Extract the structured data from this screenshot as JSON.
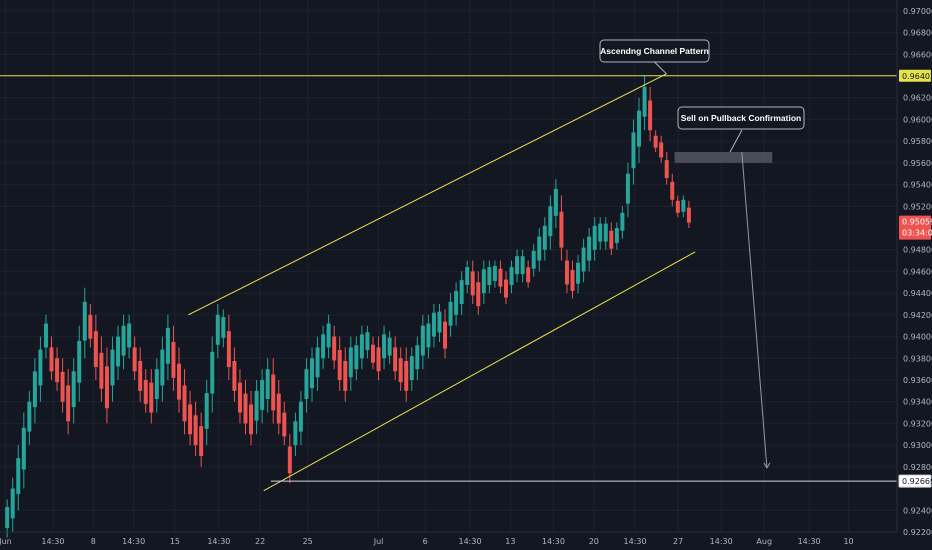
{
  "chart_data": {
    "type": "candlestick",
    "title": "",
    "xlabel": "",
    "ylabel": "",
    "ylim": [
      0.922,
      0.971
    ],
    "y_ticks": [
      0.97,
      0.968,
      0.966,
      0.962,
      0.96,
      0.958,
      0.956,
      0.954,
      0.952,
      0.948,
      0.946,
      0.944,
      0.942,
      0.94,
      0.938,
      0.936,
      0.934,
      0.932,
      0.93,
      0.928,
      0.924,
      0.922
    ],
    "y_tick_labels": [
      "0.97000",
      "0.96800",
      "0.96600",
      "0.96200",
      "0.96000",
      "0.95800",
      "0.95600",
      "0.95400",
      "0.95200",
      "0.94800",
      "0.94600",
      "0.94400",
      "0.94200",
      "0.94000",
      "0.93800",
      "0.93600",
      "0.93400",
      "0.93200",
      "0.93000",
      "0.92800",
      "0.92400",
      "0.92200"
    ],
    "x_range": [
      0,
      100
    ],
    "x_ticks": [
      {
        "x": 0.6,
        "label": "Jun"
      },
      {
        "x": 5.9,
        "label": "14:30"
      },
      {
        "x": 10.4,
        "label": "8"
      },
      {
        "x": 14.9,
        "label": "14:30"
      },
      {
        "x": 19.5,
        "label": "15"
      },
      {
        "x": 24.4,
        "label": "14:30"
      },
      {
        "x": 29.0,
        "label": "22"
      },
      {
        "x": 34.3,
        "label": "25"
      },
      {
        "x": 42.2,
        "label": "Jul"
      },
      {
        "x": 47.4,
        "label": "6"
      },
      {
        "x": 52.4,
        "label": "14:30"
      },
      {
        "x": 56.9,
        "label": "13"
      },
      {
        "x": 61.7,
        "label": "14:30"
      },
      {
        "x": 66.2,
        "label": "20"
      },
      {
        "x": 70.8,
        "label": "14:30"
      },
      {
        "x": 75.6,
        "label": "27"
      },
      {
        "x": 80.4,
        "label": "14:30"
      },
      {
        "x": 85.2,
        "label": "Aug"
      },
      {
        "x": 90.2,
        "label": "14:30"
      },
      {
        "x": 94.6,
        "label": "10"
      }
    ],
    "colors": {
      "up": "#26a69a",
      "down": "#ef5350",
      "channel": "#e8e34a",
      "support": "#d1d4dc",
      "arrow": "#9598a1",
      "zone": "#5d606b",
      "background": "#131722",
      "grid": "#1e222d",
      "axis_text": "#b2b5be"
    },
    "candle_hl": [
      [
        0.9215,
        0.925
      ],
      [
        0.922,
        0.927
      ],
      [
        0.924,
        0.93
      ],
      [
        0.926,
        0.933
      ],
      [
        0.93,
        0.935
      ],
      [
        0.932,
        0.938
      ],
      [
        0.934,
        0.94
      ],
      [
        0.938,
        0.942
      ],
      [
        0.936,
        0.94
      ],
      [
        0.935,
        0.939
      ],
      [
        0.933,
        0.938
      ],
      [
        0.931,
        0.937
      ],
      [
        0.932,
        0.938
      ],
      [
        0.934,
        0.941
      ],
      [
        0.938,
        0.9445
      ],
      [
        0.939,
        0.943
      ],
      [
        0.936,
        0.942
      ],
      [
        0.934,
        0.94
      ],
      [
        0.932,
        0.939
      ],
      [
        0.934,
        0.94
      ],
      [
        0.936,
        0.941
      ],
      [
        0.937,
        0.942
      ],
      [
        0.938,
        0.942
      ],
      [
        0.936,
        0.94
      ],
      [
        0.934,
        0.939
      ],
      [
        0.933,
        0.937
      ],
      [
        0.932,
        0.937
      ],
      [
        0.933,
        0.938
      ],
      [
        0.934,
        0.94
      ],
      [
        0.936,
        0.942
      ],
      [
        0.935,
        0.941
      ],
      [
        0.933,
        0.939
      ],
      [
        0.931,
        0.937
      ],
      [
        0.93,
        0.935
      ],
      [
        0.929,
        0.934
      ],
      [
        0.928,
        0.933
      ],
      [
        0.93,
        0.936
      ],
      [
        0.933,
        0.94
      ],
      [
        0.938,
        0.943
      ],
      [
        0.939,
        0.9425
      ],
      [
        0.936,
        0.942
      ],
      [
        0.934,
        0.939
      ],
      [
        0.932,
        0.937
      ],
      [
        0.931,
        0.936
      ],
      [
        0.93,
        0.935
      ],
      [
        0.931,
        0.936
      ],
      [
        0.932,
        0.937
      ],
      [
        0.933,
        0.938
      ],
      [
        0.932,
        0.938
      ],
      [
        0.931,
        0.936
      ],
      [
        0.93,
        0.934
      ],
      [
        0.9265,
        0.931
      ],
      [
        0.929,
        0.933
      ],
      [
        0.93,
        0.935
      ],
      [
        0.933,
        0.938
      ],
      [
        0.934,
        0.939
      ],
      [
        0.935,
        0.94
      ],
      [
        0.937,
        0.941
      ],
      [
        0.938,
        0.942
      ],
      [
        0.937,
        0.941
      ],
      [
        0.935,
        0.94
      ],
      [
        0.934,
        0.939
      ],
      [
        0.935,
        0.94
      ],
      [
        0.936,
        0.94
      ],
      [
        0.937,
        0.941
      ],
      [
        0.938,
        0.941
      ],
      [
        0.937,
        0.94
      ],
      [
        0.936,
        0.94
      ],
      [
        0.937,
        0.941
      ],
      [
        0.9375,
        0.9405
      ],
      [
        0.936,
        0.94
      ],
      [
        0.935,
        0.939
      ],
      [
        0.934,
        0.939
      ],
      [
        0.935,
        0.939
      ],
      [
        0.936,
        0.94
      ],
      [
        0.937,
        0.942
      ],
      [
        0.938,
        0.942
      ],
      [
        0.939,
        0.943
      ],
      [
        0.9395,
        0.943
      ],
      [
        0.938,
        0.9425
      ],
      [
        0.94,
        0.944
      ],
      [
        0.941,
        0.945
      ],
      [
        0.942,
        0.946
      ],
      [
        0.944,
        0.947
      ],
      [
        0.943,
        0.947
      ],
      [
        0.942,
        0.946
      ],
      [
        0.943,
        0.947
      ],
      [
        0.944,
        0.947
      ],
      [
        0.9445,
        0.947
      ],
      [
        0.944,
        0.947
      ],
      [
        0.943,
        0.946
      ],
      [
        0.944,
        0.947
      ],
      [
        0.945,
        0.948
      ],
      [
        0.945,
        0.948
      ],
      [
        0.9445,
        0.947
      ],
      [
        0.9455,
        0.9485
      ],
      [
        0.946,
        0.95
      ],
      [
        0.947,
        0.951
      ],
      [
        0.948,
        0.953
      ],
      [
        0.95,
        0.9545
      ],
      [
        0.947,
        0.953
      ],
      [
        0.944,
        0.948
      ],
      [
        0.9435,
        0.947
      ],
      [
        0.944,
        0.9475
      ],
      [
        0.945,
        0.949
      ],
      [
        0.946,
        0.95
      ],
      [
        0.947,
        0.951
      ],
      [
        0.948,
        0.951
      ],
      [
        0.948,
        0.951
      ],
      [
        0.9475,
        0.9505
      ],
      [
        0.948,
        0.9505
      ],
      [
        0.949,
        0.952
      ],
      [
        0.951,
        0.956
      ],
      [
        0.954,
        0.96
      ],
      [
        0.956,
        0.962
      ],
      [
        0.959,
        0.964
      ],
      [
        0.958,
        0.963
      ],
      [
        0.957,
        0.959
      ],
      [
        0.956,
        0.9585
      ],
      [
        0.954,
        0.957
      ],
      [
        0.952,
        0.955
      ],
      [
        0.951,
        0.953
      ],
      [
        0.951,
        0.953
      ],
      [
        0.95,
        0.9525
      ]
    ],
    "annotations": [
      {
        "text": "Ascendng Channel Pattern"
      },
      {
        "text": "Sell on Pullback Confirmation"
      }
    ],
    "channel_upper": [
      [
        21.0,
        0.942
      ],
      [
        74.3,
        0.9642
      ]
    ],
    "channel_lower": [
      [
        29.4,
        0.9258
      ],
      [
        77.5,
        0.9478
      ]
    ],
    "resistance": {
      "value": 0.96402,
      "label": "0.96402"
    },
    "support": {
      "value": 0.92669,
      "label": "0.92669",
      "x_start": 30.2
    },
    "current_price": {
      "value": 0.95059,
      "label": "0.95059",
      "timer": "03:34:08"
    },
    "supply_zone": {
      "x": [
        75.2,
        86.1
      ],
      "y": [
        0.956,
        0.957
      ]
    },
    "projection_arrow": {
      "from": [
        82.7,
        0.957
      ],
      "to": [
        85.5,
        0.9279
      ]
    }
  }
}
